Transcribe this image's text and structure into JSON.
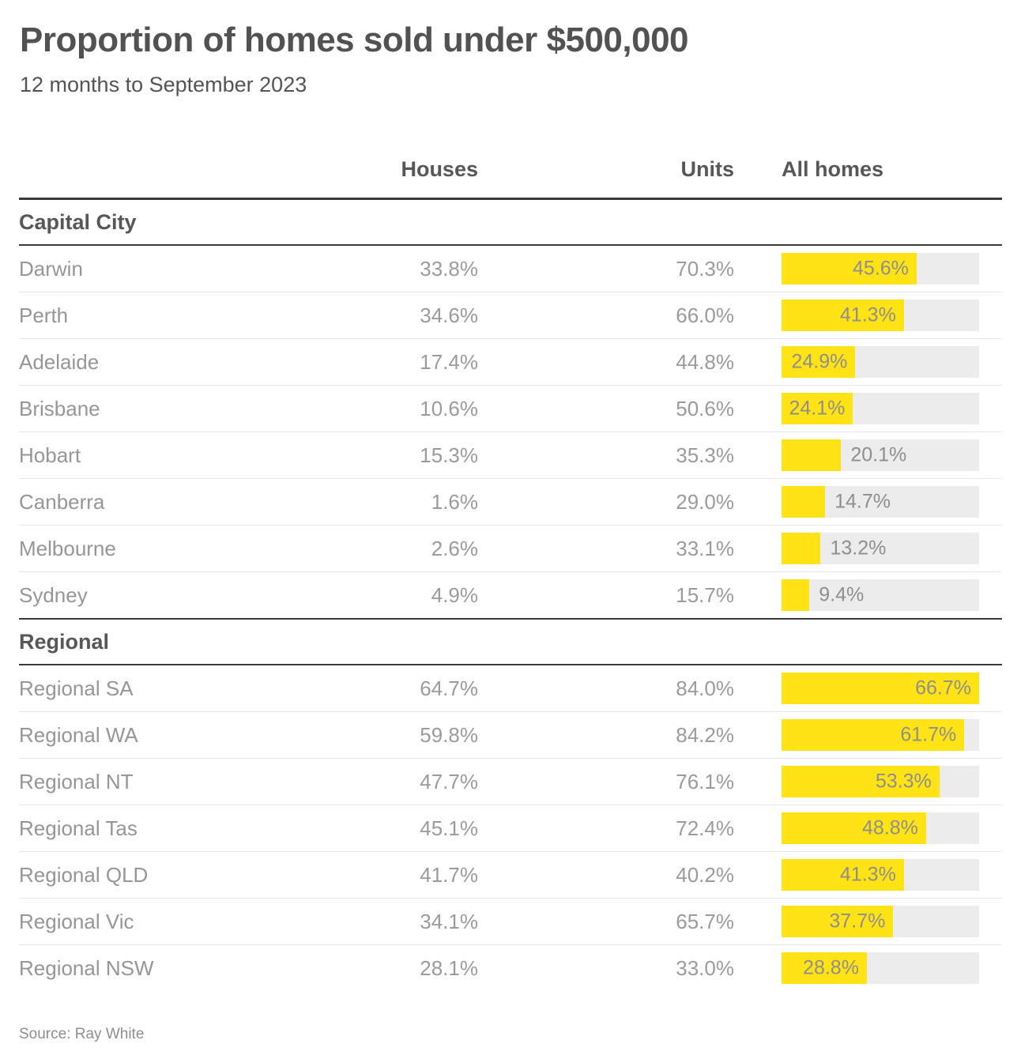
{
  "header": {
    "title": "Proportion of homes sold under $500,000",
    "subtitle": "12 months to September 2023"
  },
  "table": {
    "columns": [
      "Houses",
      "Units",
      "All homes"
    ],
    "sections": [
      {
        "label": "Capital City",
        "rows": [
          {
            "label": "Darwin",
            "houses": 33.8,
            "units": 70.3,
            "all_homes": 45.6
          },
          {
            "label": "Perth",
            "houses": 34.6,
            "units": 66.0,
            "all_homes": 41.3
          },
          {
            "label": "Adelaide",
            "houses": 17.4,
            "units": 44.8,
            "all_homes": 24.9
          },
          {
            "label": "Brisbane",
            "houses": 10.6,
            "units": 50.6,
            "all_homes": 24.1
          },
          {
            "label": "Hobart",
            "houses": 15.3,
            "units": 35.3,
            "all_homes": 20.1
          },
          {
            "label": "Canberra",
            "houses": 1.6,
            "units": 29.0,
            "all_homes": 14.7
          },
          {
            "label": "Melbourne",
            "houses": 2.6,
            "units": 33.1,
            "all_homes": 13.2
          },
          {
            "label": "Sydney",
            "houses": 4.9,
            "units": 15.7,
            "all_homes": 9.4
          }
        ]
      },
      {
        "label": "Regional",
        "rows": [
          {
            "label": "Regional SA",
            "houses": 64.7,
            "units": 84.0,
            "all_homes": 66.7
          },
          {
            "label": "Regional WA",
            "houses": 59.8,
            "units": 84.2,
            "all_homes": 61.7
          },
          {
            "label": "Regional NT",
            "houses": 47.7,
            "units": 76.1,
            "all_homes": 53.3
          },
          {
            "label": "Regional Tas",
            "houses": 45.1,
            "units": 72.4,
            "all_homes": 48.8
          },
          {
            "label": "Regional QLD",
            "houses": 41.7,
            "units": 40.2,
            "all_homes": 41.3
          },
          {
            "label": "Regional Vic",
            "houses": 34.1,
            "units": 65.7,
            "all_homes": 37.7
          },
          {
            "label": "Regional NSW",
            "houses": 28.1,
            "units": 33.0,
            "all_homes": 28.8
          }
        ]
      }
    ]
  },
  "source": "Source: Ray White",
  "colors": {
    "bar_fill": "#ffe314",
    "bar_track": "#ececec",
    "rule_dark": "#3a3a3a",
    "text_dark": "#57575a",
    "text_light": "#9b9b9b"
  },
  "chart_data": {
    "type": "bar",
    "title": "Proportion of homes sold under $500,000",
    "subtitle": "12 months to September 2023",
    "unit": "%",
    "orientation": "horizontal",
    "bar_series_shown": "All homes",
    "bar_scale_max": 66.7,
    "groups": [
      {
        "name": "Capital City",
        "categories": [
          "Darwin",
          "Perth",
          "Adelaide",
          "Brisbane",
          "Hobart",
          "Canberra",
          "Melbourne",
          "Sydney"
        ]
      },
      {
        "name": "Regional",
        "categories": [
          "Regional SA",
          "Regional WA",
          "Regional NT",
          "Regional Tas",
          "Regional QLD",
          "Regional Vic",
          "Regional NSW"
        ]
      }
    ],
    "categories": [
      "Darwin",
      "Perth",
      "Adelaide",
      "Brisbane",
      "Hobart",
      "Canberra",
      "Melbourne",
      "Sydney",
      "Regional SA",
      "Regional WA",
      "Regional NT",
      "Regional Tas",
      "Regional QLD",
      "Regional Vic",
      "Regional NSW"
    ],
    "series": [
      {
        "name": "Houses",
        "values": [
          33.8,
          34.6,
          17.4,
          10.6,
          15.3,
          1.6,
          2.6,
          4.9,
          64.7,
          59.8,
          47.7,
          45.1,
          41.7,
          34.1,
          28.1
        ]
      },
      {
        "name": "Units",
        "values": [
          70.3,
          66.0,
          44.8,
          50.6,
          35.3,
          29.0,
          33.1,
          15.7,
          84.0,
          84.2,
          76.1,
          72.4,
          40.2,
          65.7,
          33.0
        ]
      },
      {
        "name": "All homes",
        "values": [
          45.6,
          41.3,
          24.9,
          24.1,
          20.1,
          14.7,
          13.2,
          9.4,
          66.7,
          61.7,
          53.3,
          48.8,
          41.3,
          37.7,
          28.8
        ]
      }
    ],
    "source": "Source: Ray White"
  }
}
